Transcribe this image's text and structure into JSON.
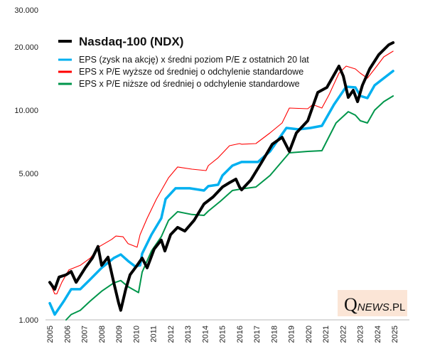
{
  "chart_data": {
    "type": "line",
    "title": "Nasdaq-100 (NDX)",
    "xlabel": "",
    "ylabel": "",
    "yscale": "log",
    "ylim": [
      1000,
      30000
    ],
    "xlim": [
      2005,
      2025.4
    ],
    "grid": false,
    "legend_position": "top-left",
    "y_ticks": [
      {
        "value": 30000,
        "label": "30.000"
      },
      {
        "value": 20000,
        "label": "20.000"
      },
      {
        "value": 10000,
        "label": "10.000"
      },
      {
        "value": 5000,
        "label": "5.000"
      },
      {
        "value": 1000,
        "label": "1.000"
      }
    ],
    "x_ticks": [
      "2005",
      "2006",
      "2007",
      "2008",
      "2009",
      "2010",
      "2011",
      "2012",
      "2013",
      "2014",
      "2015",
      "2016",
      "2017",
      "2018",
      "2019",
      "2020",
      "2021",
      "2022",
      "2023",
      "2024",
      "2025"
    ],
    "series": [
      {
        "name": "EPS x P/E niższe od średniej o odchylenie standardowe",
        "color": "#00964b",
        "width": 2,
        "x": [
          2005.95,
          2006.24,
          2006.77,
          2007.35,
          2008.01,
          2008.71,
          2009.12,
          2009.54,
          2010.15,
          2010.36,
          2010.9,
          2011.47,
          2011.89,
          2012.42,
          2013.25,
          2013.95,
          2014.2,
          2014.9,
          2015.6,
          2016.13,
          2016.96,
          2017.78,
          2018.9,
          2019.97,
          2020.79,
          2021.61,
          2022.32,
          2022.73,
          2023.02,
          2023.43,
          2023.85,
          2024.38,
          2024.92
        ],
        "y": [
          1000,
          1060,
          1110,
          1230,
          1370,
          1500,
          1540,
          1440,
          1350,
          1690,
          2130,
          2490,
          2980,
          3280,
          3180,
          3150,
          3300,
          3680,
          4140,
          4210,
          4300,
          4880,
          6260,
          6360,
          6410,
          8690,
          9840,
          9470,
          8900,
          8690,
          10000,
          10980,
          11690
        ]
      },
      {
        "name": "EPS x P/E wyższe od średniej o odchylenie standardowe",
        "color": "#ff0000",
        "width": 1.1,
        "x": [
          2005.0,
          2005.29,
          2005.41,
          2005.7,
          2006.11,
          2006.77,
          2007.35,
          2007.89,
          2008.59,
          2008.84,
          2009.25,
          2009.54,
          2010.07,
          2010.24,
          2010.65,
          2011.19,
          2011.89,
          2012.42,
          2013.25,
          2014.07,
          2014.2,
          2014.77,
          2015.43,
          2016.01,
          2016.13,
          2016.96,
          2017.78,
          2018.48,
          2018.9,
          2019.97,
          2020.26,
          2020.79,
          2021.21,
          2021.78,
          2022.2,
          2022.73,
          2023.02,
          2023.43,
          2023.85,
          2024.38,
          2024.92
        ],
        "y": [
          1510,
          1330,
          1330,
          1510,
          1730,
          1820,
          1970,
          2240,
          2420,
          2510,
          2490,
          2310,
          2220,
          2550,
          3050,
          3770,
          4760,
          5360,
          5230,
          5150,
          5440,
          5930,
          6770,
          6930,
          6880,
          6930,
          7790,
          8690,
          10240,
          10160,
          10640,
          10240,
          11870,
          15010,
          16230,
          15730,
          15010,
          14210,
          15730,
          17960,
          19110
        ]
      },
      {
        "name": "EPS (zysk na akcję) x średni poziom P/E z ostatnich 20 lat",
        "color": "#00b0f0",
        "width": 3.5,
        "x": [
          2005.0,
          2005.29,
          2005.82,
          2006.24,
          2006.77,
          2007.35,
          2008.01,
          2008.71,
          2009.12,
          2009.54,
          2009.95,
          2010.24,
          2010.36,
          2010.9,
          2011.47,
          2011.72,
          2012.3,
          2013.12,
          2013.95,
          2014.2,
          2014.77,
          2015.02,
          2015.6,
          2016.13,
          2017.08,
          2017.78,
          2018.73,
          2019.43,
          2020.13,
          2020.79,
          2021.49,
          2022.2,
          2022.73,
          2023.02,
          2023.43,
          2023.85,
          2024.38,
          2024.92
        ],
        "y": [
          1200,
          1060,
          1230,
          1400,
          1400,
          1560,
          1770,
          1970,
          2050,
          1910,
          1800,
          1820,
          2070,
          2550,
          3050,
          3770,
          4240,
          4240,
          4140,
          4340,
          4410,
          4880,
          5440,
          5660,
          5660,
          6360,
          8230,
          8100,
          8230,
          8420,
          10640,
          12940,
          12840,
          11690,
          11420,
          13140,
          14210,
          15370
        ]
      },
      {
        "name": "Nasdaq-100 (NDX)",
        "color": "#000000",
        "width": 4,
        "x": [
          2005.0,
          2005.29,
          2005.54,
          2005.95,
          2006.24,
          2006.53,
          2007.06,
          2007.47,
          2007.8,
          2008.01,
          2008.38,
          2008.71,
          2009.0,
          2009.12,
          2009.41,
          2009.66,
          2010.07,
          2010.36,
          2010.65,
          2011.06,
          2011.47,
          2011.68,
          2012.01,
          2012.42,
          2012.84,
          2013.37,
          2013.95,
          2014.48,
          2015.02,
          2015.43,
          2015.8,
          2016.01,
          2016.13,
          2016.67,
          2017.25,
          2017.91,
          2018.48,
          2018.9,
          2019.31,
          2019.97,
          2020.55,
          2021.08,
          2021.78,
          2022.03,
          2022.32,
          2022.61,
          2022.86,
          2023.14,
          2023.56,
          2024.09,
          2024.67,
          2024.92
        ],
        "y": [
          1510,
          1400,
          1600,
          1640,
          1700,
          1510,
          1770,
          1970,
          2240,
          1820,
          1990,
          1510,
          1200,
          1110,
          1400,
          1640,
          1820,
          1970,
          1770,
          2180,
          2400,
          2130,
          2550,
          2760,
          2650,
          2980,
          3570,
          3860,
          4300,
          4510,
          4690,
          4300,
          4170,
          4650,
          5570,
          6880,
          7430,
          6360,
          7790,
          8900,
          12150,
          12840,
          16230,
          14550,
          11510,
          12440,
          10980,
          13140,
          15730,
          18390,
          20510,
          20990
        ]
      }
    ]
  },
  "legend": {
    "title": "Nasdaq-100 (NDX)",
    "items": [
      {
        "label": "EPS (zysk na akcję) x średni poziom P/E z ostatnich 20 lat",
        "color": "#00b0f0"
      },
      {
        "label": "EPS x P/E wyższe od średniej o odchylenie standardowe",
        "color": "#ff0000"
      },
      {
        "label": "EPS x P/E niższe od średniej o odchylenie standardowe",
        "color": "#00964b"
      }
    ]
  },
  "watermark": {
    "text": "QNEWS.PL",
    "q": "Q",
    "rest": "NEWS",
    "suffix": ".PL"
  }
}
